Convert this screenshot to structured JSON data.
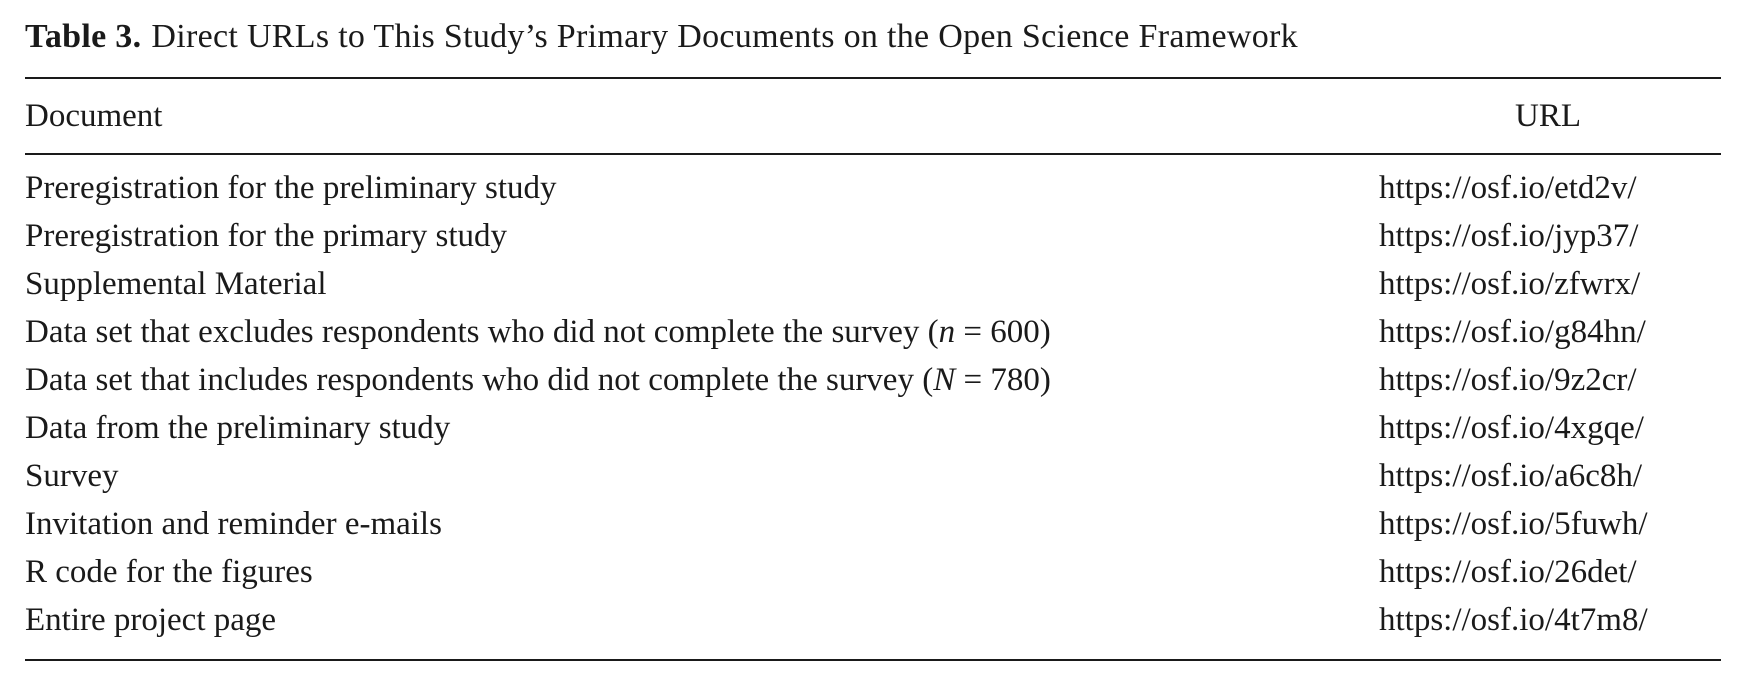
{
  "table": {
    "label": "Table 3.",
    "caption": "Direct URLs to This Study’s Primary Documents on the Open Science Framework",
    "columns": [
      "Document",
      "URL"
    ],
    "rows": [
      {
        "document": "Preregistration for the preliminary study",
        "url": "https://osf.io/etd2v/"
      },
      {
        "document": "Preregistration for the primary study",
        "url": "https://osf.io/jyp37/"
      },
      {
        "document": "Supplemental Material",
        "url": "https://osf.io/zfwrx/"
      },
      {
        "document": "Data set that excludes respondents who did not complete the survey (",
        "stat_symbol": "n",
        "stat_value": " = 600)",
        "url": "https://osf.io/g84hn/"
      },
      {
        "document": "Data set that includes respondents who did not complete the survey (",
        "stat_symbol": "N",
        "stat_value": " = 780)",
        "url": "https://osf.io/9z2cr/"
      },
      {
        "document": "Data from the preliminary study",
        "url": "https://osf.io/4xgqe/"
      },
      {
        "document": "Survey",
        "url": "https://osf.io/a6c8h/"
      },
      {
        "document": "Invitation and reminder e-mails",
        "url": "https://osf.io/5fuwh/"
      },
      {
        "document": "R code for the figures",
        "url": "https://osf.io/26det/"
      },
      {
        "document": "Entire project page",
        "url": "https://osf.io/4t7m8/"
      }
    ]
  }
}
